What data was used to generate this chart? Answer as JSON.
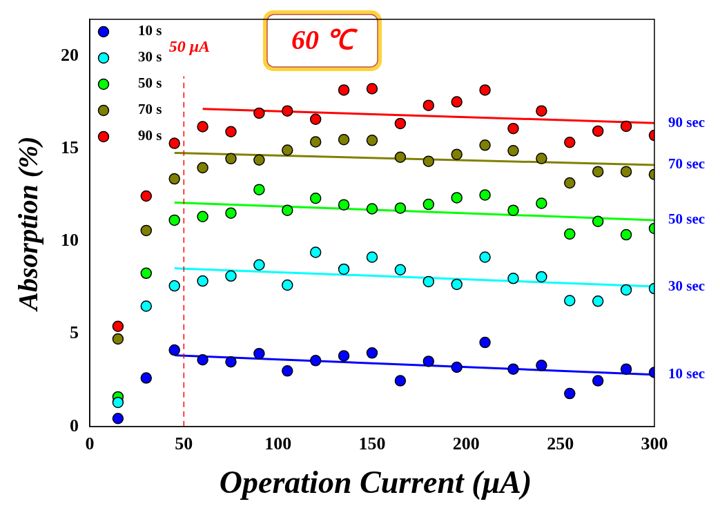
{
  "chart_data": {
    "type": "scatter",
    "xlabel": "Operation Current (μA)",
    "ylabel": "Absorption (%)",
    "x": [
      15,
      30,
      45,
      60,
      75,
      90,
      105,
      120,
      135,
      150,
      165,
      180,
      195,
      210,
      225,
      240,
      255,
      270,
      285,
      300
    ],
    "series": [
      {
        "name": "10 s",
        "color": "#0000ff",
        "values": [
          0.43,
          2.62,
          4.13,
          3.6,
          3.49,
          3.94,
          3.0,
          3.56,
          3.82,
          3.97,
          2.47,
          3.52,
          3.2,
          4.54,
          3.1,
          3.3,
          1.78,
          2.47,
          3.1,
          2.92
        ]
      },
      {
        "name": "30 s",
        "color": "#00ffff",
        "values": [
          1.3,
          6.5,
          7.6,
          7.86,
          8.13,
          8.73,
          7.64,
          9.41,
          8.5,
          9.15,
          8.47,
          7.83,
          7.68,
          9.15,
          8.0,
          8.09,
          6.8,
          6.77,
          7.38,
          7.45
        ]
      },
      {
        "name": "50 s",
        "color": "#00ff00",
        "values": [
          1.6,
          8.28,
          11.15,
          11.34,
          11.53,
          12.8,
          11.68,
          12.33,
          11.98,
          11.76,
          11.8,
          12.0,
          12.36,
          12.51,
          11.68,
          12.06,
          10.4,
          11.08,
          10.36,
          10.7
        ]
      },
      {
        "name": "70 s",
        "color": "#808000",
        "values": [
          4.73,
          10.59,
          13.38,
          13.98,
          14.47,
          14.4,
          14.93,
          15.38,
          15.5,
          15.46,
          14.55,
          14.33,
          14.7,
          15.2,
          14.9,
          14.48,
          13.16,
          13.77,
          13.77,
          13.62
        ]
      },
      {
        "name": "90 s",
        "color": "#ff0000",
        "values": [
          5.41,
          12.45,
          15.3,
          16.2,
          15.93,
          16.93,
          17.05,
          16.6,
          18.18,
          18.25,
          16.37,
          17.35,
          17.54,
          18.18,
          16.1,
          17.05,
          15.35,
          15.96,
          16.22,
          15.73
        ]
      },
      {
        "type": "line",
        "marker": "none",
        "color": "#0000ff",
        "x": [
          45,
          300
        ],
        "values": [
          3.85,
          2.8
        ]
      },
      {
        "type": "line",
        "marker": "none",
        "color": "#00ffff",
        "x": [
          45,
          300
        ],
        "values": [
          8.55,
          7.56
        ]
      },
      {
        "type": "line",
        "marker": "none",
        "color": "#00ff00",
        "x": [
          45,
          300
        ],
        "values": [
          12.1,
          11.15
        ]
      },
      {
        "type": "line",
        "marker": "none",
        "color": "#808000",
        "x": [
          45,
          300
        ],
        "values": [
          14.78,
          14.13
        ]
      },
      {
        "type": "line",
        "marker": "none",
        "color": "#ff0000",
        "x": [
          60,
          300
        ],
        "values": [
          17.16,
          16.4
        ]
      }
    ],
    "xlim": [
      0,
      300
    ],
    "xticks": [
      0,
      50,
      100,
      150,
      200,
      250,
      300
    ],
    "ylim": [
      0,
      22
    ],
    "yticks": [
      0,
      5,
      10,
      15,
      20
    ],
    "grid": false,
    "legend": "top left",
    "marker": "circle",
    "ref_lines": [
      {
        "axis": "x",
        "value": 50,
        "label": "50 μA",
        "color": "#ff0000",
        "line_style": "dashed"
      }
    ],
    "annotations": [
      "60 ℃",
      "10 sec",
      "30 sec",
      "50 sec",
      "70 sec",
      "90 sec"
    ]
  }
}
